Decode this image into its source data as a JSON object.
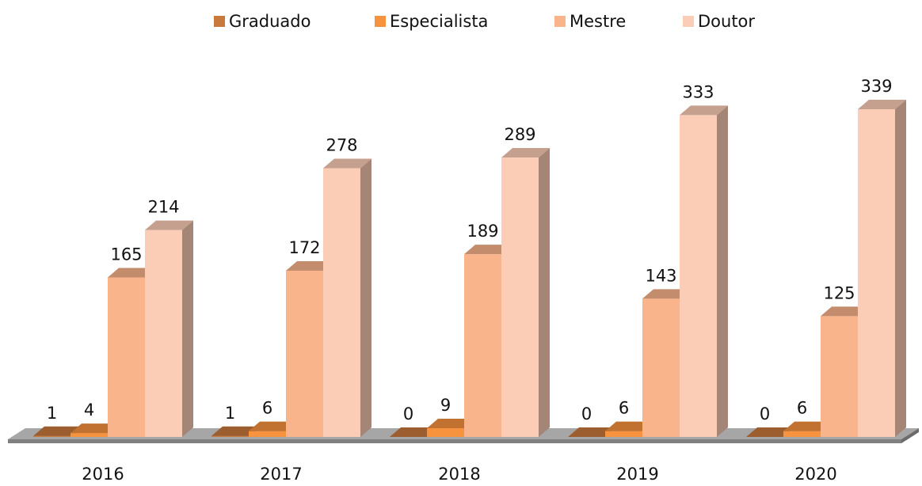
{
  "chart_data": {
    "type": "bar3d",
    "categories": [
      "2016",
      "2017",
      "2018",
      "2019",
      "2020"
    ],
    "series": [
      {
        "name": "Graduado",
        "color": "#c8793c",
        "values": [
          1,
          1,
          0,
          0,
          0
        ]
      },
      {
        "name": "Especialista",
        "color": "#f7923f",
        "values": [
          4,
          6,
          9,
          6,
          6
        ]
      },
      {
        "name": "Mestre",
        "color": "#fab48c",
        "values": [
          165,
          172,
          189,
          143,
          125
        ]
      },
      {
        "name": "Doutor",
        "color": "#fccdb6",
        "values": [
          214,
          278,
          289,
          333,
          339
        ]
      }
    ],
    "legend": "top"
  }
}
